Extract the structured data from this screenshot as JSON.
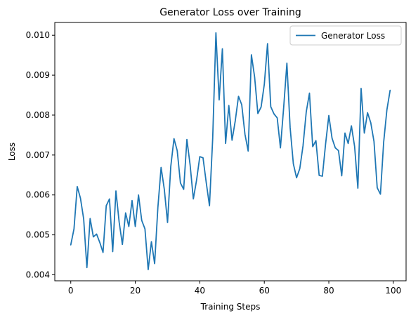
{
  "chart_data": {
    "type": "line",
    "title": "Generator Loss over Training",
    "xlabel": "Training Steps",
    "ylabel": "Loss",
    "xlim": [
      -4.95,
      103.95
    ],
    "ylim": [
      0.00385,
      0.01032
    ],
    "xticks": [
      0,
      20,
      40,
      60,
      80,
      100
    ],
    "xtick_labels": [
      "0",
      "20",
      "40",
      "60",
      "80",
      "100"
    ],
    "yticks": [
      0.004,
      0.005,
      0.006,
      0.007,
      0.008,
      0.009,
      0.01
    ],
    "ytick_labels": [
      "0.004",
      "0.005",
      "0.006",
      "0.007",
      "0.008",
      "0.009",
      "0.010"
    ],
    "grid": false,
    "legend_position": "top-right",
    "series": [
      {
        "name": "Generator Loss",
        "color": "#1f77b4",
        "x": [
          0,
          1,
          2,
          3,
          4,
          5,
          6,
          7,
          8,
          9,
          10,
          11,
          12,
          13,
          14,
          15,
          16,
          17,
          18,
          19,
          20,
          21,
          22,
          23,
          24,
          25,
          26,
          27,
          28,
          29,
          30,
          31,
          32,
          33,
          34,
          35,
          36,
          37,
          38,
          39,
          40,
          41,
          42,
          43,
          44,
          45,
          46,
          47,
          48,
          49,
          50,
          51,
          52,
          53,
          54,
          55,
          56,
          57,
          58,
          59,
          60,
          61,
          62,
          63,
          64,
          65,
          66,
          67,
          68,
          69,
          70,
          71,
          72,
          73,
          74,
          75,
          76,
          77,
          78,
          79,
          80,
          81,
          82,
          83,
          84,
          85,
          86,
          87,
          88,
          89,
          90,
          91,
          92,
          93,
          94,
          95,
          96,
          97,
          98,
          99
        ],
        "values": [
          0.00475,
          0.00515,
          0.00621,
          0.00592,
          0.0054,
          0.00418,
          0.00541,
          0.00495,
          0.00502,
          0.00481,
          0.00456,
          0.00573,
          0.0059,
          0.00458,
          0.0061,
          0.00532,
          0.00476,
          0.00555,
          0.00521,
          0.00586,
          0.00521,
          0.006,
          0.00536,
          0.00515,
          0.00413,
          0.00483,
          0.00428,
          0.00568,
          0.00669,
          0.00614,
          0.00531,
          0.00671,
          0.00741,
          0.00711,
          0.0063,
          0.00614,
          0.00739,
          0.00675,
          0.0059,
          0.00637,
          0.00696,
          0.00693,
          0.00631,
          0.00573,
          0.00742,
          0.01006,
          0.00838,
          0.00966,
          0.00729,
          0.00824,
          0.00737,
          0.00786,
          0.00847,
          0.00826,
          0.00752,
          0.0071,
          0.00951,
          0.00895,
          0.00804,
          0.0082,
          0.00877,
          0.00979,
          0.00821,
          0.00803,
          0.00793,
          0.00718,
          0.00819,
          0.0093,
          0.00769,
          0.00678,
          0.00643,
          0.00666,
          0.00723,
          0.00808,
          0.00855,
          0.00721,
          0.00736,
          0.00649,
          0.00647,
          0.00728,
          0.00799,
          0.00742,
          0.00718,
          0.00711,
          0.00648,
          0.00755,
          0.00729,
          0.00773,
          0.00721,
          0.00617,
          0.00867,
          0.00755,
          0.00806,
          0.00781,
          0.00734,
          0.00618,
          0.00602,
          0.00732,
          0.00813,
          0.00862
        ]
      }
    ]
  }
}
